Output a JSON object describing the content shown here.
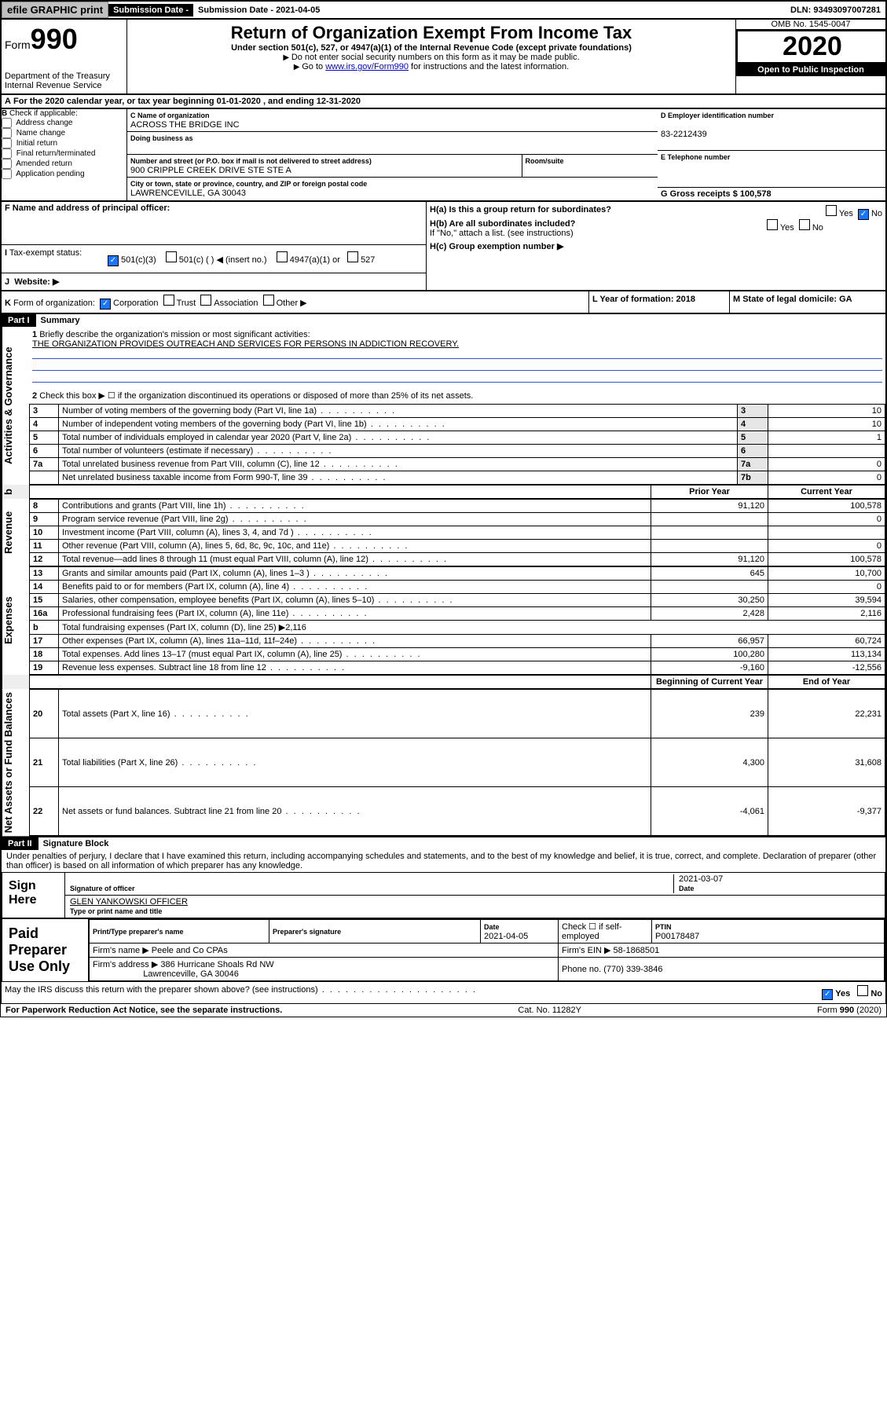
{
  "topbar": {
    "efile": "efile GRAPHIC print",
    "sub_date_label": "Submission Date - 2021-04-05",
    "dln": "DLN: 93493097007281"
  },
  "header": {
    "form": "Form",
    "form_no": "990",
    "dept1": "Department of the Treasury",
    "dept2": "Internal Revenue Service",
    "title": "Return of Organization Exempt From Income Tax",
    "subtitle": "Under section 501(c), 527, or 4947(a)(1) of the Internal Revenue Code (except private foundations)",
    "note1": "Do not enter social security numbers on this form as it may be made public.",
    "note2_pre": "Go to ",
    "note2_link": "www.irs.gov/Form990",
    "note2_post": " for instructions and the latest information.",
    "omb": "OMB No. 1545-0047",
    "year": "2020",
    "open": "Open to Public Inspection"
  },
  "lineA": "For the 2020 calendar year, or tax year beginning 01-01-2020     , and ending 12-31-2020",
  "boxB": {
    "label": "Check if applicable:",
    "items": [
      "Address change",
      "Name change",
      "Initial return",
      "Final return/terminated",
      "Amended return",
      "Application pending"
    ]
  },
  "boxC": {
    "name_label": "C Name of organization",
    "name": "ACROSS THE BRIDGE INC",
    "dba_label": "Doing business as",
    "addr_label": "Number and street (or P.O. box if mail is not delivered to street address)",
    "room_label": "Room/suite",
    "addr": "900 CRIPPLE CREEK DRIVE STE STE A",
    "city_label": "City or town, state or province, country, and ZIP or foreign postal code",
    "city": "LAWRENCEVILLE, GA  30043"
  },
  "boxD": {
    "label": "D Employer identification number",
    "val": "83-2212439"
  },
  "boxE": {
    "label": "E Telephone number"
  },
  "boxG": {
    "label": "G Gross receipts $ 100,578"
  },
  "boxF": {
    "label": "F  Name and address of principal officer:"
  },
  "boxH": {
    "ha": "H(a)  Is this a group return for subordinates?",
    "hb": "H(b)  Are all subordinates included?",
    "hb_note": "If \"No,\" attach a list. (see instructions)",
    "hc": "H(c)  Group exemption number ▶",
    "yes": "Yes",
    "no": "No"
  },
  "boxI": {
    "label": "Tax-exempt status:",
    "c3": "501(c)(3)",
    "c": "501(c) (  ) ◀ (insert no.)",
    "a1": "4947(a)(1) or",
    "s527": "527"
  },
  "boxJ": {
    "label": "Website: ▶"
  },
  "boxK": {
    "label": "Form of organization:",
    "corp": "Corporation",
    "trust": "Trust",
    "assoc": "Association",
    "other": "Other ▶"
  },
  "boxL": {
    "label": "L Year of formation: 2018"
  },
  "boxM": {
    "label": "M State of legal domicile: GA"
  },
  "part1": {
    "hdr": "Part I",
    "title": "Summary",
    "l1": "Briefly describe the organization's mission or most significant activities:",
    "l1v": "THE ORGANIZATION PROVIDES OUTREACH AND SERVICES FOR PERSONS IN ADDICTION RECOVERY.",
    "l2": "Check this box ▶ ☐  if the organization discontinued its operations or disposed of more than 25% of its net assets.",
    "rows": [
      {
        "n": "3",
        "t": "Number of voting members of the governing body (Part VI, line 1a)",
        "k": "3",
        "v": "10"
      },
      {
        "n": "4",
        "t": "Number of independent voting members of the governing body (Part VI, line 1b)",
        "k": "4",
        "v": "10"
      },
      {
        "n": "5",
        "t": "Total number of individuals employed in calendar year 2020 (Part V, line 2a)",
        "k": "5",
        "v": "1"
      },
      {
        "n": "6",
        "t": "Total number of volunteers (estimate if necessary)",
        "k": "6",
        "v": ""
      },
      {
        "n": "7a",
        "t": "Total unrelated business revenue from Part VIII, column (C), line 12",
        "k": "7a",
        "v": "0"
      },
      {
        "n": "",
        "t": "Net unrelated business taxable income from Form 990-T, line 39",
        "k": "7b",
        "v": "0"
      }
    ],
    "col_prior": "Prior Year",
    "col_curr": "Current Year",
    "col_beg": "Beginning of Current Year",
    "col_end": "End of Year",
    "section_gov": "Activities & Governance",
    "section_rev": "Revenue",
    "section_exp": "Expenses",
    "section_net": "Net Assets or Fund Balances",
    "rev": [
      {
        "n": "8",
        "t": "Contributions and grants (Part VIII, line 1h)",
        "p": "91,120",
        "c": "100,578"
      },
      {
        "n": "9",
        "t": "Program service revenue (Part VIII, line 2g)",
        "p": "",
        "c": "0"
      },
      {
        "n": "10",
        "t": "Investment income (Part VIII, column (A), lines 3, 4, and 7d )",
        "p": "",
        "c": ""
      },
      {
        "n": "11",
        "t": "Other revenue (Part VIII, column (A), lines 5, 6d, 8c, 9c, 10c, and 11e)",
        "p": "",
        "c": "0"
      },
      {
        "n": "12",
        "t": "Total revenue—add lines 8 through 11 (must equal Part VIII, column (A), line 12)",
        "p": "91,120",
        "c": "100,578"
      }
    ],
    "exp": [
      {
        "n": "13",
        "t": "Grants and similar amounts paid (Part IX, column (A), lines 1–3 )",
        "p": "645",
        "c": "10,700"
      },
      {
        "n": "14",
        "t": "Benefits paid to or for members (Part IX, column (A), line 4)",
        "p": "",
        "c": "0"
      },
      {
        "n": "15",
        "t": "Salaries, other compensation, employee benefits (Part IX, column (A), lines 5–10)",
        "p": "30,250",
        "c": "39,594"
      },
      {
        "n": "16a",
        "t": "Professional fundraising fees (Part IX, column (A), line 11e)",
        "p": "2,428",
        "c": "2,116"
      },
      {
        "n": "b",
        "t": "Total fundraising expenses (Part IX, column (D), line 25) ▶2,116",
        "p": "",
        "c": "",
        "noVal": true
      },
      {
        "n": "17",
        "t": "Other expenses (Part IX, column (A), lines 11a–11d, 11f–24e)",
        "p": "66,957",
        "c": "60,724"
      },
      {
        "n": "18",
        "t": "Total expenses. Add lines 13–17 (must equal Part IX, column (A), line 25)",
        "p": "100,280",
        "c": "113,134"
      },
      {
        "n": "19",
        "t": "Revenue less expenses. Subtract line 18 from line 12",
        "p": "-9,160",
        "c": "-12,556"
      }
    ],
    "net": [
      {
        "n": "20",
        "t": "Total assets (Part X, line 16)",
        "p": "239",
        "c": "22,231"
      },
      {
        "n": "21",
        "t": "Total liabilities (Part X, line 26)",
        "p": "4,300",
        "c": "31,608"
      },
      {
        "n": "22",
        "t": "Net assets or fund balances. Subtract line 21 from line 20",
        "p": "-4,061",
        "c": "-9,377"
      }
    ]
  },
  "part2": {
    "hdr": "Part II",
    "title": "Signature Block",
    "perjury": "Under penalties of perjury, I declare that I have examined this return, including accompanying schedules and statements, and to the best of my knowledge and belief, it is true, correct, and complete. Declaration of preparer (other than officer) is based on all information of which preparer has any knowledge.",
    "sign_here": "Sign Here",
    "sig_officer": "Signature of officer",
    "sig_date": "2021-03-07",
    "date_lbl": "Date",
    "typed_name": "GLEN YANKOWSKI  OFFICER",
    "typed_lbl": "Type or print name and title",
    "paid": "Paid Preparer Use Only",
    "pp_name_lbl": "Print/Type preparer's name",
    "pp_sig_lbl": "Preparer's signature",
    "pp_date_lbl": "Date",
    "pp_date": "2021-04-05",
    "pp_check": "Check ☐ if self-employed",
    "ptin_lbl": "PTIN",
    "ptin": "P00178487",
    "firm_name_lbl": "Firm's name    ▶",
    "firm_name": "Peele and Co CPAs",
    "firm_ein_lbl": "Firm's EIN ▶ 58-1868501",
    "firm_addr_lbl": "Firm's address ▶",
    "firm_addr1": "386 Hurricane Shoals Rd NW",
    "firm_addr2": "Lawrenceville, GA  30046",
    "phone_lbl": "Phone no. (770) 339-3846",
    "discuss": "May the IRS discuss this return with the preparer shown above? (see instructions)",
    "yes": "Yes",
    "no": "No"
  },
  "footer": {
    "pra": "For Paperwork Reduction Act Notice, see the separate instructions.",
    "cat": "Cat. No. 11282Y",
    "form": "Form 990 (2020)"
  }
}
